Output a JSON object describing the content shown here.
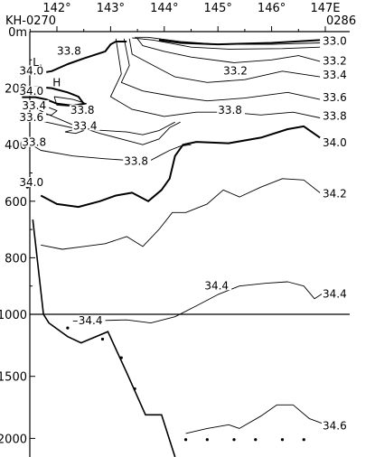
{
  "chart_data": {
    "type": "line",
    "section_label": "KH-0270",
    "station_label": "0286",
    "x_ticks": [
      "142°",
      "143°",
      "144°",
      "145°",
      "146°",
      "147E"
    ],
    "x_tick_values": [
      142,
      143,
      144,
      145,
      146,
      147
    ],
    "x_range": [
      141.2,
      147.1
    ],
    "y_ticks_upper": [
      "0m",
      "200",
      "400",
      "600",
      "800",
      "1000"
    ],
    "y_tick_values_upper": [
      0,
      200,
      400,
      600,
      800,
      1000
    ],
    "y_ticks_lower": [
      "1500",
      "2000"
    ],
    "y_tick_values_lower": [
      1500,
      2000
    ],
    "upper_depth_range": [
      0,
      1000
    ],
    "lower_depth_range": [
      1000,
      2150
    ],
    "break_depth": 1000,
    "grid": false,
    "contour_labels": [
      {
        "text": "33.0",
        "lon": 146.95,
        "depth": 40
      },
      {
        "text": "33.2",
        "lon": 146.95,
        "depth": 110
      },
      {
        "text": "33.4",
        "lon": 146.95,
        "depth": 160
      },
      {
        "text": "33.6",
        "lon": 146.95,
        "depth": 240
      },
      {
        "text": "33.8",
        "lon": 146.95,
        "depth": 305
      },
      {
        "text": "34.0",
        "lon": 146.95,
        "depth": 400
      },
      {
        "text": "34.2",
        "lon": 146.95,
        "depth": 580
      },
      {
        "text": "34.4",
        "lon": 146.95,
        "depth": 935
      },
      {
        "text": "33.2",
        "lon": 145.1,
        "depth": 145
      },
      {
        "text": "33.8",
        "lon": 145.0,
        "depth": 285
      },
      {
        "text": "33.8",
        "lon": 142.0,
        "depth": 75
      },
      {
        "text": "34.0",
        "lon": 141.3,
        "depth": 145
      },
      {
        "text": "34.0",
        "lon": 141.3,
        "depth": 218
      },
      {
        "text": "33.4",
        "lon": 141.35,
        "depth": 268
      },
      {
        "text": "33.6",
        "lon": 141.3,
        "depth": 310
      },
      {
        "text": "33.8",
        "lon": 142.25,
        "depth": 285
      },
      {
        "text": "33.4",
        "lon": 142.3,
        "depth": 340
      },
      {
        "text": "33.8",
        "lon": 141.35,
        "depth": 398
      },
      {
        "text": "33.8",
        "lon": 143.25,
        "depth": 465
      },
      {
        "text": "34.0",
        "lon": 141.3,
        "depth": 540
      },
      {
        "text": "34.4",
        "lon": 144.75,
        "depth": 905
      },
      {
        "text": "34.4",
        "lon": 142.4,
        "depth": 1065
      },
      {
        "text": "34.6",
        "lon": 146.95,
        "depth": 1915
      },
      {
        "text": "L",
        "lon": 141.55,
        "depth": 115
      },
      {
        "text": "H",
        "lon": 141.92,
        "depth": 187
      }
    ],
    "isolines": [
      {
        "value": 33.0,
        "weight": "thin",
        "points": [
          [
            143.45,
            20
          ],
          [
            143.7,
            20
          ],
          [
            144.3,
            35
          ],
          [
            145.0,
            45
          ],
          [
            146.0,
            45
          ],
          [
            146.9,
            40
          ]
        ]
      },
      {
        "value": 33.0,
        "weight": "thin",
        "points": [
          [
            143.4,
            22
          ],
          [
            143.8,
            30
          ],
          [
            144.5,
            55
          ],
          [
            145.2,
            62
          ],
          [
            146.2,
            60
          ],
          [
            146.9,
            55
          ]
        ]
      },
      {
        "value": 33.2,
        "weight": "thin",
        "points": [
          [
            143.5,
            25
          ],
          [
            143.6,
            50
          ],
          [
            144.0,
            70
          ],
          [
            144.5,
            90
          ],
          [
            145.3,
            110
          ],
          [
            146.0,
            100
          ],
          [
            146.5,
            85
          ],
          [
            146.9,
            105
          ]
        ]
      },
      {
        "value": 33.4,
        "weight": "thin",
        "points": [
          [
            143.35,
            25
          ],
          [
            143.4,
            80
          ],
          [
            143.8,
            120
          ],
          [
            144.2,
            160
          ],
          [
            144.8,
            180
          ],
          [
            145.5,
            170
          ],
          [
            146.2,
            140
          ],
          [
            146.9,
            160
          ]
        ]
      },
      {
        "value": 33.6,
        "weight": "thin",
        "points": [
          [
            143.25,
            25
          ],
          [
            143.35,
            120
          ],
          [
            143.2,
            180
          ],
          [
            143.6,
            210
          ],
          [
            144.2,
            230
          ],
          [
            144.8,
            245
          ],
          [
            145.5,
            235
          ],
          [
            146.3,
            215
          ],
          [
            146.9,
            240
          ]
        ]
      },
      {
        "value": 33.8,
        "weight": "thin",
        "points": [
          [
            143.1,
            25
          ],
          [
            143.2,
            150
          ],
          [
            143.0,
            230
          ],
          [
            143.4,
            275
          ],
          [
            144.0,
            300
          ],
          [
            144.6,
            285
          ],
          [
            145.2,
            285
          ],
          [
            145.8,
            295
          ],
          [
            146.4,
            285
          ],
          [
            146.9,
            305
          ]
        ]
      },
      {
        "value": 33.8,
        "weight": "thin",
        "points": [
          [
            141.4,
            250
          ],
          [
            141.8,
            290
          ],
          [
            142.3,
            330
          ],
          [
            142.8,
            360
          ],
          [
            143.2,
            380
          ],
          [
            143.6,
            400
          ],
          [
            143.9,
            380
          ],
          [
            144.1,
            340
          ],
          [
            144.3,
            320
          ]
        ]
      },
      {
        "value": 33.8,
        "weight": "thin",
        "points": [
          [
            141.35,
            380
          ],
          [
            141.7,
            420
          ],
          [
            142.3,
            440
          ],
          [
            142.9,
            450
          ],
          [
            143.3,
            455
          ],
          [
            143.7,
            460
          ],
          [
            143.9,
            440
          ],
          [
            144.1,
            420
          ],
          [
            144.3,
            405
          ],
          [
            144.5,
            400
          ]
        ]
      },
      {
        "value": 33.6,
        "weight": "thin",
        "points": [
          [
            141.35,
            300
          ],
          [
            141.8,
            320
          ],
          [
            142.4,
            345
          ],
          [
            142.9,
            350
          ],
          [
            143.3,
            355
          ],
          [
            143.6,
            365
          ],
          [
            143.9,
            350
          ],
          [
            144.2,
            320
          ]
        ]
      },
      {
        "value": 33.4,
        "weight": "thin",
        "points": [
          [
            141.35,
            255
          ],
          [
            141.8,
            265
          ],
          [
            142.0,
            280
          ],
          [
            141.9,
            295
          ],
          [
            141.6,
            290
          ]
        ]
      },
      {
        "value": 33.4,
        "weight": "thin",
        "points": [
          [
            142.15,
            355
          ],
          [
            142.35,
            345
          ],
          [
            142.5,
            350
          ],
          [
            142.35,
            360
          ],
          [
            142.15,
            355
          ]
        ]
      },
      {
        "value": 33.8,
        "weight": "thin",
        "points": [
          [
            141.95,
            230
          ],
          [
            142.3,
            240
          ],
          [
            142.55,
            255
          ],
          [
            142.35,
            265
          ],
          [
            142.0,
            260
          ],
          [
            141.95,
            230
          ]
        ]
      },
      {
        "value": 34.0,
        "weight": "bold",
        "points": [
          [
            141.35,
            205
          ],
          [
            141.6,
            195
          ],
          [
            141.9,
            200
          ],
          [
            142.2,
            215
          ],
          [
            142.4,
            230
          ],
          [
            142.5,
            255
          ],
          [
            142.3,
            262
          ],
          [
            142.0,
            255
          ],
          [
            141.8,
            240
          ],
          [
            141.6,
            232
          ],
          [
            141.35,
            232
          ]
        ]
      },
      {
        "value": 34.0,
        "weight": "bold",
        "points": [
          [
            141.6,
            150
          ],
          [
            141.9,
            140
          ],
          [
            142.2,
            115
          ],
          [
            142.5,
            95
          ],
          [
            142.9,
            70
          ],
          [
            143.0,
            45
          ],
          [
            143.1,
            35
          ],
          [
            143.3,
            35
          ]
        ]
      },
      {
        "value": 34.0,
        "weight": "thin",
        "points": [
          [
            141.55,
            120
          ],
          [
            141.7,
            118
          ],
          [
            141.75,
            130
          ],
          [
            141.55,
            132
          ],
          [
            141.55,
            120
          ]
        ]
      },
      {
        "value": 34.0,
        "weight": "bold",
        "points": [
          [
            143.9,
            30
          ],
          [
            144.3,
            40
          ],
          [
            145.0,
            45
          ],
          [
            146.0,
            40
          ],
          [
            146.9,
            30
          ]
        ]
      },
      {
        "value": 34.0,
        "weight": "bold",
        "points": [
          [
            141.7,
            580
          ],
          [
            142.0,
            610
          ],
          [
            142.4,
            620
          ],
          [
            142.8,
            600
          ],
          [
            143.1,
            580
          ],
          [
            143.4,
            570
          ],
          [
            143.7,
            600
          ],
          [
            143.95,
            560
          ],
          [
            144.1,
            520
          ],
          [
            144.2,
            440
          ],
          [
            144.35,
            400
          ],
          [
            144.6,
            390
          ],
          [
            145.2,
            395
          ],
          [
            145.8,
            375
          ],
          [
            146.3,
            345
          ],
          [
            146.6,
            335
          ],
          [
            146.9,
            375
          ]
        ]
      },
      {
        "value": 34.2,
        "weight": "thin",
        "points": [
          [
            141.7,
            755
          ],
          [
            142.1,
            770
          ],
          [
            142.5,
            760
          ],
          [
            142.9,
            750
          ],
          [
            143.3,
            725
          ],
          [
            143.6,
            760
          ],
          [
            143.9,
            700
          ],
          [
            144.15,
            640
          ],
          [
            144.4,
            640
          ],
          [
            144.8,
            610
          ],
          [
            145.1,
            560
          ],
          [
            145.4,
            585
          ],
          [
            145.8,
            550
          ],
          [
            146.2,
            520
          ],
          [
            146.6,
            525
          ],
          [
            146.9,
            570
          ]
        ]
      },
      {
        "value": 34.4,
        "weight": "thin",
        "points": [
          [
            142.3,
            1055
          ],
          [
            142.8,
            1050
          ],
          [
            143.3,
            1045
          ],
          [
            143.75,
            1070
          ],
          [
            144.2,
            1020
          ],
          [
            144.6,
            970
          ],
          [
            145.0,
            930
          ],
          [
            145.4,
            900
          ],
          [
            145.9,
            890
          ],
          [
            146.3,
            885
          ],
          [
            146.6,
            900
          ],
          [
            146.8,
            945
          ],
          [
            147.0,
            920
          ]
        ]
      },
      {
        "value": 34.6,
        "weight": "thin",
        "points": [
          [
            144.4,
            1960
          ],
          [
            144.8,
            1920
          ],
          [
            145.2,
            1890
          ],
          [
            145.4,
            1920
          ],
          [
            145.8,
            1820
          ],
          [
            146.1,
            1730
          ],
          [
            146.4,
            1730
          ],
          [
            146.7,
            1840
          ],
          [
            146.95,
            1880
          ]
        ]
      }
    ],
    "bottom_profile": [
      [
        141.55,
        665
      ],
      [
        141.75,
        1000
      ],
      [
        141.85,
        1070
      ],
      [
        142.2,
        1180
      ],
      [
        142.45,
        1230
      ],
      [
        142.95,
        1140
      ],
      [
        143.3,
        1470
      ],
      [
        143.65,
        1810
      ],
      [
        143.95,
        1810
      ],
      [
        144.2,
        2150
      ]
    ],
    "sample_depth_dots": [
      [
        141.45,
        550
      ],
      [
        142.2,
        1110
      ],
      [
        142.55,
        1060
      ],
      [
        142.85,
        1200
      ],
      [
        143.2,
        1350
      ],
      [
        143.45,
        1600
      ],
      [
        144.4,
        2010
      ],
      [
        144.8,
        2010
      ],
      [
        145.3,
        2010
      ],
      [
        145.7,
        2010
      ],
      [
        146.2,
        2010
      ],
      [
        146.6,
        2010
      ]
    ]
  }
}
